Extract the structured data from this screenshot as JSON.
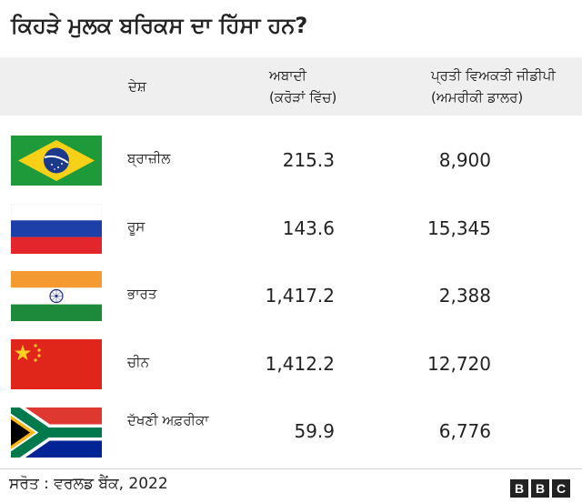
{
  "title": "ਕਿਹੜੇ ਮੁਲਕ ਬਰਿਕਸ ਦਾ ਹਿੱਸਾ ਹਨ?",
  "table": {
    "headers": {
      "country": "ਦੇਸ਼",
      "population_line1": "ਅਬਾਦੀ",
      "population_line2": "(ਕਰੋੜਾਂ ਵਿੱਚ)",
      "gdp_line1": "ਪ੍ਰਤੀ ਵਿਅਕਤੀ ਜੀਡੀਪੀ",
      "gdp_line2": "(ਅਮਰੀਕੀ ਡਾਲਰ)"
    },
    "rows": [
      {
        "flag": "brazil-flag",
        "country": "ਬ੍ਰਾਜ਼ੀਲ",
        "population": "215.3",
        "gdp_per_capita": "8,900"
      },
      {
        "flag": "russia-flag",
        "country": "ਰੂਸ",
        "population": "143.6",
        "gdp_per_capita": "15,345"
      },
      {
        "flag": "india-flag",
        "country": "ਭਾਰਤ",
        "population": "1,417.2",
        "gdp_per_capita": "2,388"
      },
      {
        "flag": "china-flag",
        "country": "ਚੀਨ",
        "population": "1,412.2",
        "gdp_per_capita": "12,720"
      },
      {
        "flag": "south-africa-flag",
        "country": "ਦੱਖਣੀ ਅਫ਼ਰੀਕਾ",
        "population": "59.9",
        "gdp_per_capita": "6,776"
      }
    ]
  },
  "footer": {
    "source": "ਸਰੋਤ : ਵਰਲਡ ਬੈਂਕ, 2022",
    "logo_letters": [
      "B",
      "B",
      "C"
    ]
  },
  "colors": {
    "header_bg": "#efefef",
    "text": "#222222",
    "logo_bg": "#222222"
  }
}
